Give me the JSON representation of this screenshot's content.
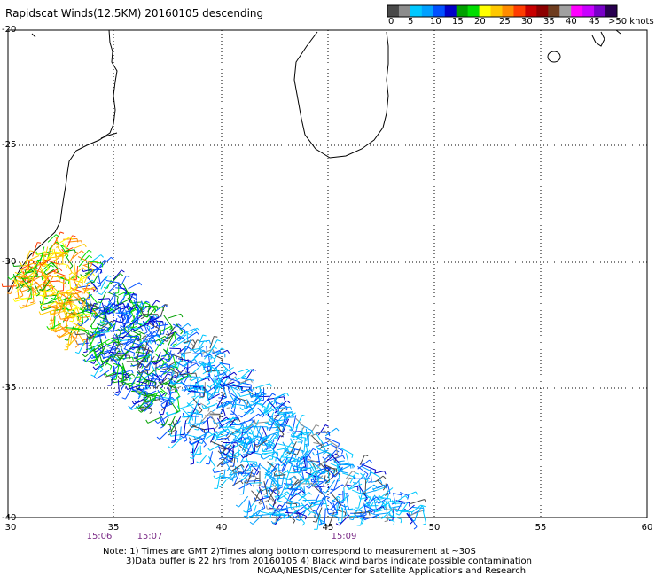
{
  "title": "Rapidscat Winds(12.5KM) 20160105 descending",
  "legend": {
    "colors": [
      "#4a4a4a",
      "#8c8c8c",
      "#00c8ff",
      "#00a0ff",
      "#0050ff",
      "#0000c8",
      "#00a000",
      "#00dd00",
      "#ffff00",
      "#ffc800",
      "#ff8c00",
      "#ff3c00",
      "#c80000",
      "#8c0000",
      "#6e3c1e",
      "#a0a0a0",
      "#ff00ff",
      "#c800ff",
      "#7800c8",
      "#280050"
    ],
    "labels": [
      "0",
      "5",
      "10",
      "15",
      "20",
      "25",
      "30",
      "35",
      "40",
      "45",
      ">50 knots"
    ]
  },
  "lat_labels": [
    "-20",
    "-25",
    "-30",
    "-35",
    "-40"
  ],
  "lon_labels": [
    "30",
    "35",
    "40",
    "45",
    "50",
    "55",
    "60"
  ],
  "time_labels": [
    "15:06",
    "15:07",
    "15:09"
  ],
  "notes": [
    "Note: 1) Times are GMT 2)Times along bottom correspond to measurement at ~30S",
    "3)Data buffer is 22 hrs from 20160105 4) Black wind barbs indicate possible contamination",
    "NOAA/NESDIS/Center for Satellite Applications and Research"
  ]
}
